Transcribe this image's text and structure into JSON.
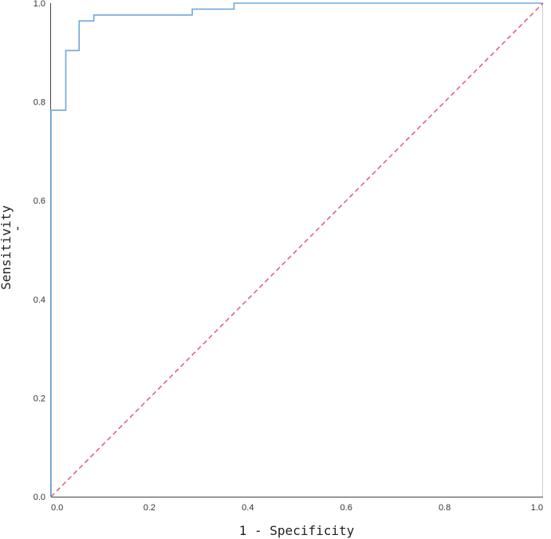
{
  "chart_data": {
    "type": "line",
    "title": "",
    "xlabel": "1 - Specificity",
    "ylabel": "Sensitivity",
    "ylabel_mark": "-",
    "xlim": [
      0,
      1
    ],
    "ylim": [
      0,
      1
    ],
    "xticks": [
      "0.0",
      "0.2",
      "0.4",
      "0.6",
      "0.8",
      "1.0"
    ],
    "yticks": [
      "0.0",
      "0.2",
      "0.4",
      "0.6",
      "0.8",
      "1.0"
    ],
    "grid": false,
    "series": [
      {
        "color": "#6fa8dc",
        "style": "step",
        "x": [
          0.0,
          0.0,
          0.03,
          0.03,
          0.057,
          0.057,
          0.087,
          0.087,
          0.287,
          0.287,
          0.372,
          0.372,
          1.0
        ],
        "y": [
          0.0,
          0.783,
          0.783,
          0.904,
          0.904,
          0.964,
          0.964,
          0.976,
          0.976,
          0.988,
          0.988,
          1.0,
          1.0
        ]
      },
      {
        "color": "#e05a7a",
        "style": "dashed",
        "x": [
          0,
          1
        ],
        "y": [
          0,
          1
        ]
      }
    ]
  }
}
